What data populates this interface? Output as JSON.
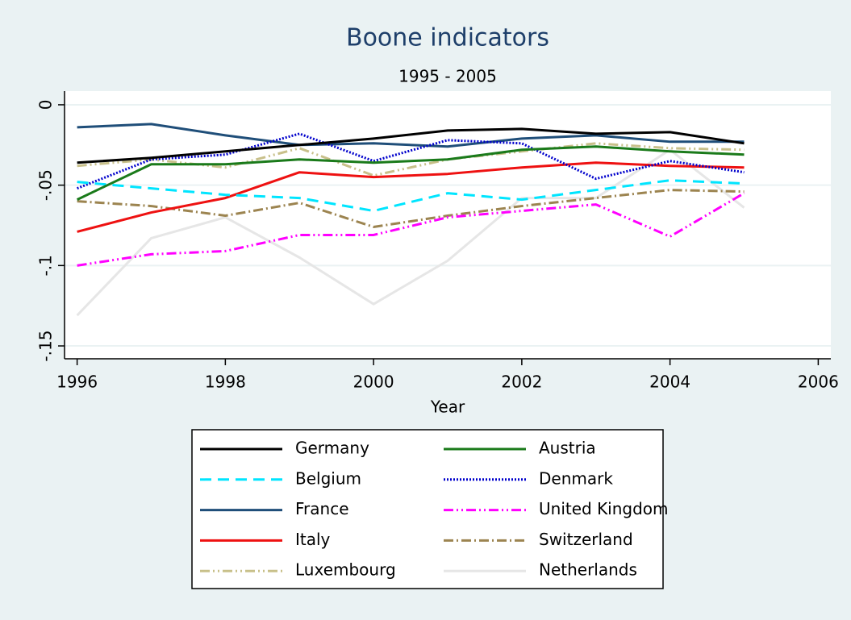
{
  "chart_data": {
    "type": "line",
    "title": "Boone indicators",
    "subtitle": "1995 - 2005",
    "x_label": "Year",
    "x": [
      1996,
      1997,
      1998,
      1999,
      2000,
      2001,
      2002,
      2003,
      2004,
      2005
    ],
    "xlim": [
      1995.83,
      2006.17
    ],
    "xticks": [
      1996,
      1998,
      2000,
      2002,
      2004,
      2006
    ],
    "ylim": [
      -0.158,
      0.0085
    ],
    "yticks": [
      {
        "value": -0.15,
        "label": "-.15"
      },
      {
        "value": -0.1,
        "label": "-.1"
      },
      {
        "value": -0.05,
        "label": "-.05"
      },
      0
    ],
    "grid": true,
    "series": [
      {
        "name": "Germany",
        "color": "#000000",
        "dash": "none",
        "values": [
          -0.036,
          -0.033,
          -0.029,
          -0.025,
          -0.021,
          -0.016,
          -0.015,
          -0.018,
          -0.017,
          -0.024
        ]
      },
      {
        "name": "Austria",
        "color": "#1a7a1a",
        "dash": "none",
        "values": [
          -0.059,
          -0.037,
          -0.037,
          -0.034,
          -0.036,
          -0.034,
          -0.028,
          -0.026,
          -0.029,
          -0.031
        ]
      },
      {
        "name": "Belgium",
        "color": "#00e5ff",
        "dash": "14 8",
        "values": [
          -0.048,
          -0.052,
          -0.056,
          -0.058,
          -0.066,
          -0.055,
          -0.059,
          -0.053,
          -0.047,
          -0.049
        ]
      },
      {
        "name": "Denmark",
        "color": "#0000cc",
        "dash": "2 2",
        "values": [
          -0.052,
          -0.034,
          -0.031,
          -0.018,
          -0.035,
          -0.022,
          -0.024,
          -0.046,
          -0.035,
          -0.042
        ]
      },
      {
        "name": "France",
        "color": "#1f4e79",
        "dash": "none",
        "values": [
          -0.014,
          -0.012,
          -0.019,
          -0.025,
          -0.024,
          -0.026,
          -0.021,
          -0.019,
          -0.023,
          -0.023
        ]
      },
      {
        "name": "United Kingdom",
        "color": "#ff00ff",
        "dash": "12 4 2 4 2 4",
        "values": [
          -0.1,
          -0.093,
          -0.091,
          -0.081,
          -0.081,
          -0.07,
          -0.066,
          -0.062,
          -0.082,
          -0.055
        ]
      },
      {
        "name": "Italy",
        "color": "#ee1111",
        "dash": "none",
        "values": [
          -0.079,
          -0.067,
          -0.058,
          -0.042,
          -0.045,
          -0.043,
          -0.039,
          -0.036,
          -0.038,
          -0.039
        ]
      },
      {
        "name": "Switzerland",
        "color": "#9c8450",
        "dash": "12 4 2 4",
        "values": [
          -0.06,
          -0.063,
          -0.069,
          -0.061,
          -0.076,
          -0.069,
          -0.063,
          -0.058,
          -0.053,
          -0.054
        ]
      },
      {
        "name": "Luxembourg",
        "color": "#c8c08a",
        "dash": "12 4 2 4 2 4",
        "values": [
          -0.038,
          -0.034,
          -0.039,
          -0.027,
          -0.044,
          -0.034,
          -0.029,
          -0.024,
          -0.027,
          -0.028
        ]
      },
      {
        "name": "Netherlands",
        "color": "#e6e6e6",
        "dash": "none",
        "values": [
          -0.131,
          -0.083,
          -0.07,
          -0.095,
          -0.124,
          -0.097,
          -0.058,
          -0.058,
          -0.028,
          -0.064
        ]
      }
    ]
  }
}
